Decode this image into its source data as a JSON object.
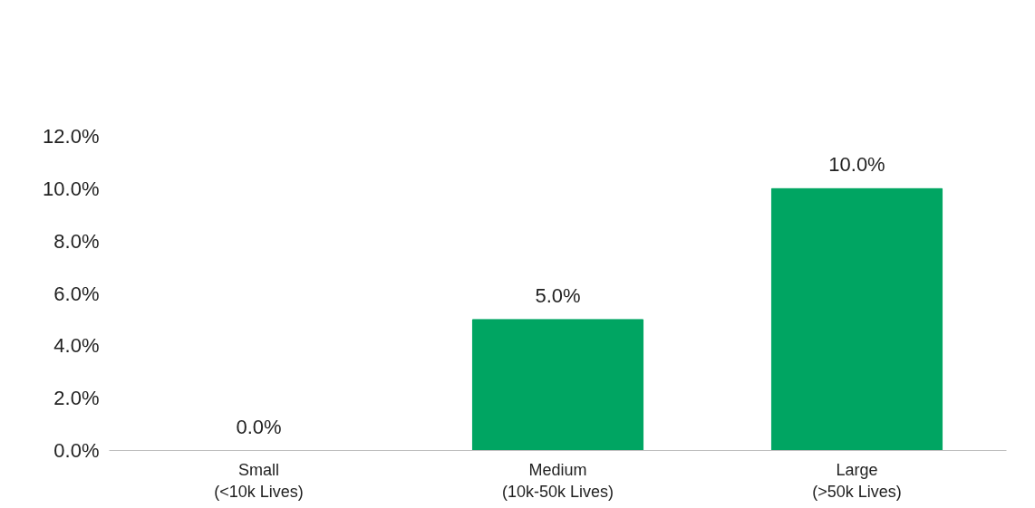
{
  "chart_data": {
    "type": "bar",
    "categories": [
      "Small\n(<10k Lives)",
      "Medium\n(10k-50k Lives)",
      "Large\n(>50k Lives)"
    ],
    "values": [
      0,
      5,
      10
    ],
    "color": "#00a562",
    "value_labels": [
      "0.0%",
      "5.0%",
      "10.0%"
    ],
    "ylim": [
      0,
      12
    ],
    "yticks": [
      {
        "value": 0,
        "label": "0.0%"
      },
      {
        "value": 2,
        "label": "2.0%"
      },
      {
        "value": 4,
        "label": "4.0%"
      },
      {
        "value": 6,
        "label": "6.0%"
      },
      {
        "value": 8,
        "label": "8.0%"
      },
      {
        "value": 10,
        "label": "10.0%"
      },
      {
        "value": 12,
        "label": "12.0%"
      }
    ],
    "grid": false
  }
}
